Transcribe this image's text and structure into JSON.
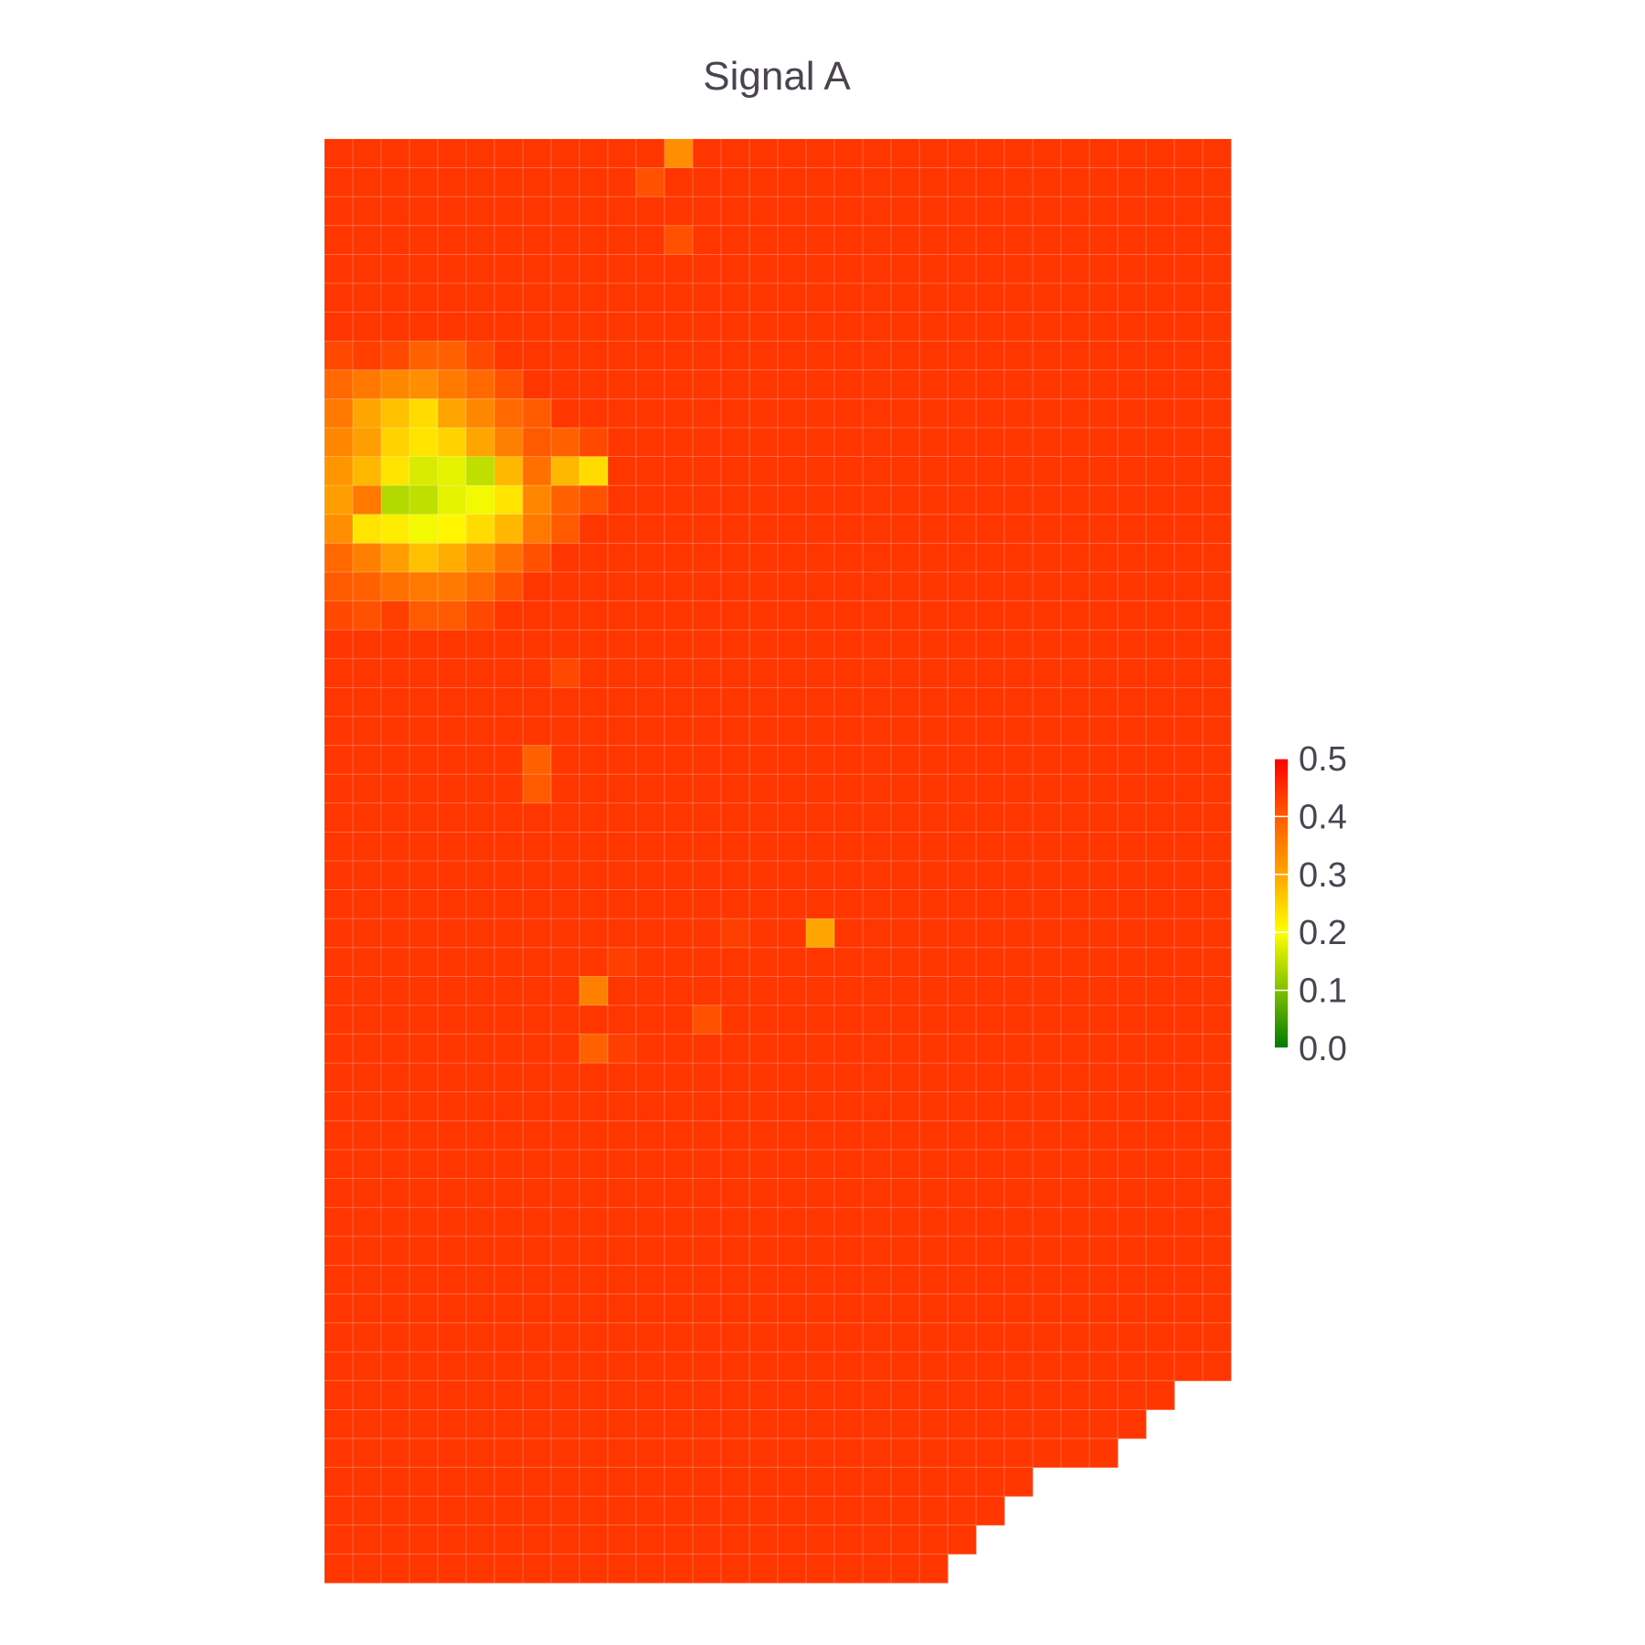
{
  "chart_data": {
    "type": "heatmap",
    "title": "Signal A",
    "xlabel": "",
    "ylabel": "",
    "grid": true,
    "legend": "colorbar right",
    "colorbar": {
      "range": [
        0,
        0.5
      ],
      "ticks": [
        "0.0",
        "0.1",
        "0.2",
        "0.3",
        "0.4",
        "0.5"
      ],
      "colors": [
        "#007a00",
        "#7fbf00",
        "#ffff00",
        "#ffa500",
        "#ff5a00",
        "#ff0000"
      ]
    },
    "shape": {
      "rows": 50,
      "cols": 32
    },
    "background_value": 0.44,
    "row_extent": [
      32,
      32,
      32,
      32,
      32,
      32,
      32,
      32,
      32,
      32,
      32,
      32,
      32,
      32,
      32,
      32,
      32,
      32,
      32,
      32,
      32,
      32,
      32,
      32,
      32,
      32,
      32,
      32,
      32,
      32,
      32,
      32,
      32,
      32,
      32,
      32,
      32,
      32,
      32,
      32,
      32,
      32,
      32,
      30,
      29,
      28,
      25,
      24,
      23,
      22
    ],
    "cells": [
      [
        0,
        12,
        0.33
      ],
      [
        1,
        11,
        0.41
      ],
      [
        3,
        12,
        0.41
      ],
      [
        7,
        0,
        0.42
      ],
      [
        7,
        1,
        0.43
      ],
      [
        7,
        2,
        0.42
      ],
      [
        7,
        3,
        0.39
      ],
      [
        7,
        4,
        0.39
      ],
      [
        7,
        5,
        0.42
      ],
      [
        8,
        0,
        0.38
      ],
      [
        8,
        1,
        0.36
      ],
      [
        8,
        2,
        0.34
      ],
      [
        8,
        3,
        0.33
      ],
      [
        8,
        4,
        0.36
      ],
      [
        8,
        5,
        0.38
      ],
      [
        8,
        6,
        0.41
      ],
      [
        9,
        0,
        0.36
      ],
      [
        9,
        1,
        0.3
      ],
      [
        9,
        2,
        0.27
      ],
      [
        9,
        3,
        0.24
      ],
      [
        9,
        4,
        0.3
      ],
      [
        9,
        5,
        0.34
      ],
      [
        9,
        6,
        0.38
      ],
      [
        9,
        7,
        0.4
      ],
      [
        10,
        0,
        0.34
      ],
      [
        10,
        1,
        0.31
      ],
      [
        10,
        2,
        0.25
      ],
      [
        10,
        3,
        0.23
      ],
      [
        10,
        4,
        0.25
      ],
      [
        10,
        5,
        0.3
      ],
      [
        10,
        6,
        0.35
      ],
      [
        10,
        7,
        0.4
      ],
      [
        10,
        8,
        0.39
      ],
      [
        10,
        9,
        0.42
      ],
      [
        11,
        0,
        0.32
      ],
      [
        11,
        1,
        0.28
      ],
      [
        11,
        2,
        0.23
      ],
      [
        11,
        3,
        0.17
      ],
      [
        11,
        4,
        0.18
      ],
      [
        11,
        5,
        0.15
      ],
      [
        11,
        6,
        0.28
      ],
      [
        11,
        7,
        0.37
      ],
      [
        11,
        8,
        0.28
      ],
      [
        11,
        9,
        0.24
      ],
      [
        12,
        0,
        0.31
      ],
      [
        12,
        1,
        0.36
      ],
      [
        12,
        2,
        0.14
      ],
      [
        12,
        3,
        0.15
      ],
      [
        12,
        4,
        0.18
      ],
      [
        12,
        5,
        0.19
      ],
      [
        12,
        6,
        0.23
      ],
      [
        12,
        7,
        0.34
      ],
      [
        12,
        8,
        0.39
      ],
      [
        12,
        9,
        0.41
      ],
      [
        13,
        0,
        0.33
      ],
      [
        13,
        1,
        0.23
      ],
      [
        13,
        2,
        0.22
      ],
      [
        13,
        3,
        0.19
      ],
      [
        13,
        4,
        0.21
      ],
      [
        13,
        5,
        0.24
      ],
      [
        13,
        6,
        0.28
      ],
      [
        13,
        7,
        0.36
      ],
      [
        13,
        8,
        0.4
      ],
      [
        14,
        0,
        0.38
      ],
      [
        14,
        1,
        0.35
      ],
      [
        14,
        2,
        0.31
      ],
      [
        14,
        3,
        0.27
      ],
      [
        14,
        4,
        0.29
      ],
      [
        14,
        5,
        0.33
      ],
      [
        14,
        6,
        0.37
      ],
      [
        14,
        7,
        0.41
      ],
      [
        15,
        0,
        0.4
      ],
      [
        15,
        1,
        0.39
      ],
      [
        15,
        2,
        0.37
      ],
      [
        15,
        3,
        0.36
      ],
      [
        15,
        4,
        0.36
      ],
      [
        15,
        5,
        0.38
      ],
      [
        15,
        6,
        0.41
      ],
      [
        16,
        0,
        0.42
      ],
      [
        16,
        1,
        0.41
      ],
      [
        16,
        2,
        0.43
      ],
      [
        16,
        3,
        0.4
      ],
      [
        16,
        4,
        0.4
      ],
      [
        16,
        5,
        0.42
      ],
      [
        18,
        8,
        0.42
      ],
      [
        21,
        7,
        0.39
      ],
      [
        22,
        7,
        0.4
      ],
      [
        27,
        14,
        0.43
      ],
      [
        27,
        17,
        0.3
      ],
      [
        28,
        10,
        0.43
      ],
      [
        29,
        9,
        0.35
      ],
      [
        30,
        13,
        0.41
      ],
      [
        31,
        9,
        0.39
      ],
      [
        31,
        10,
        0.43
      ]
    ]
  }
}
